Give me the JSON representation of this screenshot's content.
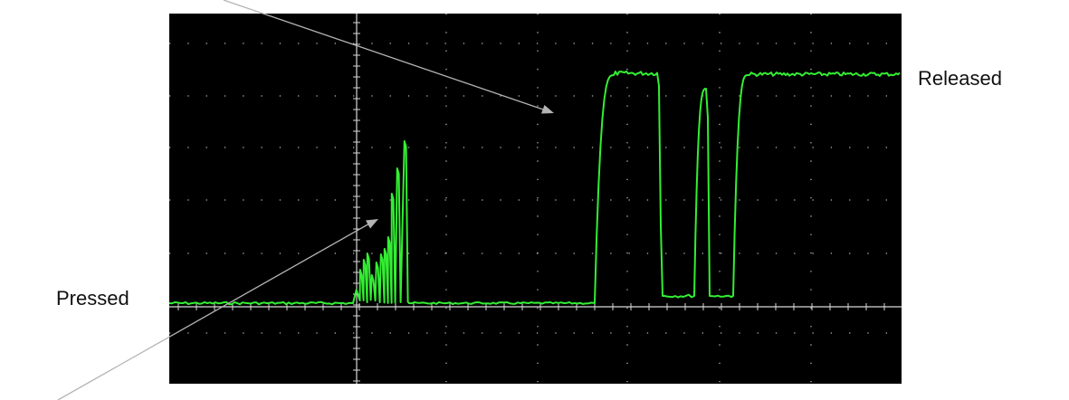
{
  "labels": {
    "released": "Released",
    "pressed": "Pressed"
  },
  "colors": {
    "screen": "#000000",
    "trace": "#33ee33",
    "graticule": "#d8d8d8",
    "arrow": "#b4b4b4",
    "text": "#111111"
  },
  "scope": {
    "grid_divisions": {
      "horizontal": 8,
      "vertical": 6
    },
    "trace_levels": {
      "low": 0,
      "high": 1
    }
  }
}
